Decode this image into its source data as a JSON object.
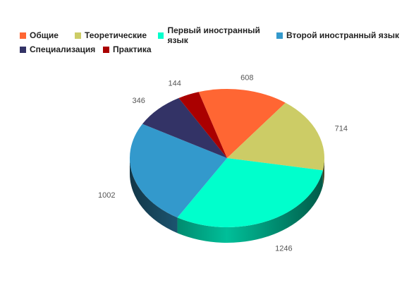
{
  "chart_data": {
    "type": "pie",
    "title": "",
    "legend": "top",
    "series": [
      {
        "name": "Общие",
        "value": 608,
        "color": "#ff6633"
      },
      {
        "name": "Теоретические",
        "value": 714,
        "color": "#cccc66"
      },
      {
        "name": "Первый иностранный язык",
        "value": 1246,
        "color": "#00ffcc"
      },
      {
        "name": "Второй иностранный язык",
        "value": 1002,
        "color": "#3399cc"
      },
      {
        "name": "Специализация",
        "value": 346,
        "color": "#333366"
      },
      {
        "name": "Практика",
        "value": 144,
        "color": "#aa0000"
      }
    ]
  }
}
